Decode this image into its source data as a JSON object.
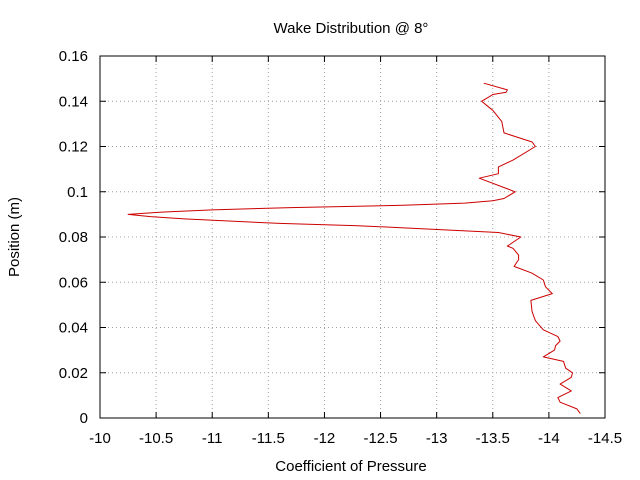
{
  "chart_data": {
    "type": "line",
    "title": "Wake Distribution @ 8°",
    "xlabel": "Coefficient of Pressure",
    "ylabel": "Position (m)",
    "xlim": [
      -10,
      -14.5
    ],
    "ylim": [
      0,
      0.16
    ],
    "x_reversed": true,
    "grid": true,
    "x_ticks": [
      -10,
      -10.5,
      -11,
      -11.5,
      -12,
      -12.5,
      -13,
      -13.5,
      -14,
      -14.5
    ],
    "x_tick_labels": [
      "-10",
      "-10.5",
      "-11",
      "-11.5",
      "-12",
      "-12.5",
      "-13",
      "-13.5",
      "-14",
      "-14.5"
    ],
    "y_ticks": [
      0,
      0.02,
      0.04,
      0.06,
      0.08,
      0.1,
      0.12,
      0.14,
      0.16
    ],
    "y_tick_labels": [
      "0",
      "0.02",
      "0.04",
      "0.06",
      "0.08",
      "0.1",
      "0.12",
      "0.14",
      "0.16"
    ],
    "series_color": "#cc0000",
    "series": [
      {
        "points": [
          [
            -14.28,
            0.002
          ],
          [
            -14.25,
            0.004
          ],
          [
            -14.1,
            0.007
          ],
          [
            -14.08,
            0.009
          ],
          [
            -14.2,
            0.012
          ],
          [
            -14.1,
            0.015
          ],
          [
            -14.2,
            0.018
          ],
          [
            -14.21,
            0.02
          ],
          [
            -14.15,
            0.022
          ],
          [
            -14.13,
            0.025
          ],
          [
            -13.95,
            0.027
          ],
          [
            -14.05,
            0.03
          ],
          [
            -14.06,
            0.032
          ],
          [
            -14.1,
            0.034
          ],
          [
            -14.08,
            0.036
          ],
          [
            -13.95,
            0.039
          ],
          [
            -13.88,
            0.043
          ],
          [
            -13.85,
            0.047
          ],
          [
            -13.84,
            0.052
          ],
          [
            -14.03,
            0.055
          ],
          [
            -13.97,
            0.058
          ],
          [
            -13.95,
            0.061
          ],
          [
            -13.85,
            0.064
          ],
          [
            -13.69,
            0.067
          ],
          [
            -13.73,
            0.07
          ],
          [
            -13.73,
            0.072
          ],
          [
            -13.68,
            0.075
          ],
          [
            -13.63,
            0.076
          ],
          [
            -13.75,
            0.08
          ],
          [
            -13.55,
            0.082
          ],
          [
            -12.3,
            0.085
          ],
          [
            -11.6,
            0.086
          ],
          [
            -10.75,
            0.088
          ],
          [
            -10.45,
            0.089
          ],
          [
            -10.25,
            0.09
          ],
          [
            -10.55,
            0.091
          ],
          [
            -11.0,
            0.092
          ],
          [
            -11.7,
            0.093
          ],
          [
            -12.7,
            0.094
          ],
          [
            -13.25,
            0.095
          ],
          [
            -13.5,
            0.096
          ],
          [
            -13.6,
            0.097
          ],
          [
            -13.7,
            0.1
          ],
          [
            -13.38,
            0.106
          ],
          [
            -13.55,
            0.108
          ],
          [
            -13.55,
            0.111
          ],
          [
            -13.68,
            0.114
          ],
          [
            -13.88,
            0.12
          ],
          [
            -13.85,
            0.122
          ],
          [
            -13.6,
            0.126
          ],
          [
            -13.58,
            0.131
          ],
          [
            -13.5,
            0.136
          ],
          [
            -13.45,
            0.138
          ],
          [
            -13.4,
            0.14
          ],
          [
            -13.47,
            0.142
          ],
          [
            -13.5,
            0.143
          ],
          [
            -13.62,
            0.144
          ],
          [
            -13.63,
            0.145
          ],
          [
            -13.42,
            0.148
          ]
        ]
      }
    ]
  }
}
